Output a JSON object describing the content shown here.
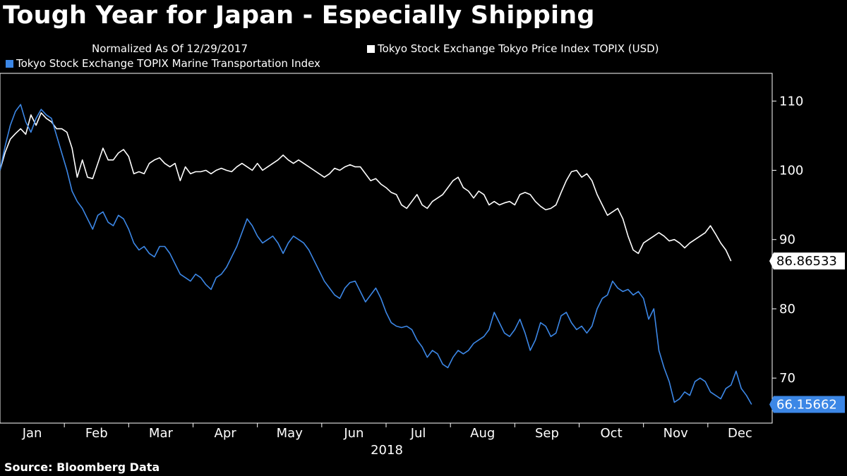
{
  "title": "Tough Year for Japan - Especially Shipping",
  "source": "Source:  Bloomberg Data",
  "colors": {
    "background": "#000000",
    "topix": "#ffffff",
    "marine": "#3c87e6"
  },
  "chart_data": {
    "type": "line",
    "title": "Tough Year for Japan - Especially Shipping",
    "subtitle": "Normalized As Of 12/29/2017",
    "xlabel": "2018",
    "ylabel": "",
    "ylim": [
      63.5,
      114
    ],
    "yticks": [
      70,
      80,
      90,
      100,
      110
    ],
    "ytick_labels": [
      "70",
      "80",
      "90",
      "100",
      "110"
    ],
    "x_domain": [
      0,
      12
    ],
    "x_ticks": [
      {
        "label": "Jan",
        "x": 0.5
      },
      {
        "label": "Feb",
        "x": 1.5
      },
      {
        "label": "Mar",
        "x": 2.5
      },
      {
        "label": "Apr",
        "x": 3.5
      },
      {
        "label": "May",
        "x": 4.5
      },
      {
        "label": "Jun",
        "x": 5.5
      },
      {
        "label": "Jul",
        "x": 6.5
      },
      {
        "label": "Aug",
        "x": 7.5
      },
      {
        "label": "Sep",
        "x": 8.5
      },
      {
        "label": "Oct",
        "x": 9.5
      },
      {
        "label": "Nov",
        "x": 10.5
      },
      {
        "label": "Dec",
        "x": 11.5
      }
    ],
    "legend_position": "top",
    "series": [
      {
        "name": "Tokyo Stock Exchange Tokyo Price Index TOPIX (USD)",
        "color": "#ffffff",
        "last_value_label": "86.86533",
        "points": [
          [
            0.0,
            100.0
          ],
          [
            0.08,
            102.6
          ],
          [
            0.16,
            104.5
          ],
          [
            0.24,
            105.3
          ],
          [
            0.32,
            106.0
          ],
          [
            0.4,
            105.2
          ],
          [
            0.48,
            108.0
          ],
          [
            0.56,
            106.5
          ],
          [
            0.64,
            108.3
          ],
          [
            0.72,
            107.5
          ],
          [
            0.8,
            107.0
          ],
          [
            0.88,
            106.0
          ],
          [
            0.96,
            106.0
          ],
          [
            1.04,
            105.5
          ],
          [
            1.12,
            103.2
          ],
          [
            1.2,
            99.0
          ],
          [
            1.28,
            101.5
          ],
          [
            1.36,
            99.0
          ],
          [
            1.44,
            98.8
          ],
          [
            1.52,
            101.0
          ],
          [
            1.6,
            103.2
          ],
          [
            1.68,
            101.5
          ],
          [
            1.76,
            101.5
          ],
          [
            1.84,
            102.5
          ],
          [
            1.92,
            103.0
          ],
          [
            2.0,
            102.0
          ],
          [
            2.08,
            99.5
          ],
          [
            2.16,
            99.8
          ],
          [
            2.24,
            99.5
          ],
          [
            2.32,
            101.0
          ],
          [
            2.4,
            101.5
          ],
          [
            2.48,
            101.8
          ],
          [
            2.56,
            101.0
          ],
          [
            2.64,
            100.5
          ],
          [
            2.72,
            101.0
          ],
          [
            2.8,
            98.5
          ],
          [
            2.88,
            100.5
          ],
          [
            2.96,
            99.5
          ],
          [
            3.04,
            99.8
          ],
          [
            3.12,
            99.8
          ],
          [
            3.2,
            100.0
          ],
          [
            3.28,
            99.5
          ],
          [
            3.36,
            100.0
          ],
          [
            3.44,
            100.3
          ],
          [
            3.52,
            100.0
          ],
          [
            3.6,
            99.8
          ],
          [
            3.68,
            100.5
          ],
          [
            3.76,
            101.0
          ],
          [
            3.84,
            100.5
          ],
          [
            3.92,
            100.0
          ],
          [
            4.0,
            101.0
          ],
          [
            4.08,
            100.0
          ],
          [
            4.16,
            100.5
          ],
          [
            4.24,
            101.0
          ],
          [
            4.32,
            101.5
          ],
          [
            4.4,
            102.2
          ],
          [
            4.48,
            101.5
          ],
          [
            4.56,
            101.0
          ],
          [
            4.64,
            101.5
          ],
          [
            4.72,
            101.0
          ],
          [
            4.8,
            100.5
          ],
          [
            4.88,
            100.0
          ],
          [
            4.96,
            99.5
          ],
          [
            5.04,
            99.0
          ],
          [
            5.12,
            99.5
          ],
          [
            5.2,
            100.3
          ],
          [
            5.28,
            100.0
          ],
          [
            5.36,
            100.5
          ],
          [
            5.44,
            100.8
          ],
          [
            5.52,
            100.5
          ],
          [
            5.6,
            100.5
          ],
          [
            5.68,
            99.5
          ],
          [
            5.76,
            98.5
          ],
          [
            5.84,
            98.8
          ],
          [
            5.92,
            98.0
          ],
          [
            6.0,
            97.5
          ],
          [
            6.08,
            96.8
          ],
          [
            6.16,
            96.5
          ],
          [
            6.24,
            95.0
          ],
          [
            6.32,
            94.5
          ],
          [
            6.4,
            95.5
          ],
          [
            6.48,
            96.5
          ],
          [
            6.56,
            95.0
          ],
          [
            6.64,
            94.5
          ],
          [
            6.72,
            95.5
          ],
          [
            6.8,
            96.0
          ],
          [
            6.88,
            96.5
          ],
          [
            6.96,
            97.5
          ],
          [
            7.04,
            98.5
          ],
          [
            7.12,
            99.0
          ],
          [
            7.2,
            97.5
          ],
          [
            7.28,
            97.0
          ],
          [
            7.36,
            96.0
          ],
          [
            7.44,
            97.0
          ],
          [
            7.52,
            96.5
          ],
          [
            7.6,
            95.0
          ],
          [
            7.68,
            95.5
          ],
          [
            7.76,
            95.0
          ],
          [
            7.84,
            95.3
          ],
          [
            7.92,
            95.5
          ],
          [
            8.0,
            95.0
          ],
          [
            8.08,
            96.5
          ],
          [
            8.16,
            96.8
          ],
          [
            8.24,
            96.5
          ],
          [
            8.32,
            95.5
          ],
          [
            8.4,
            94.8
          ],
          [
            8.48,
            94.3
          ],
          [
            8.56,
            94.5
          ],
          [
            8.64,
            95.0
          ],
          [
            8.72,
            96.8
          ],
          [
            8.8,
            98.5
          ],
          [
            8.88,
            99.8
          ],
          [
            8.96,
            100.0
          ],
          [
            9.04,
            99.0
          ],
          [
            9.12,
            99.5
          ],
          [
            9.2,
            98.5
          ],
          [
            9.28,
            96.5
          ],
          [
            9.36,
            95.0
          ],
          [
            9.44,
            93.5
          ],
          [
            9.52,
            94.0
          ],
          [
            9.6,
            94.5
          ],
          [
            9.68,
            93.0
          ],
          [
            9.76,
            90.5
          ],
          [
            9.84,
            88.5
          ],
          [
            9.92,
            88.0
          ],
          [
            10.0,
            89.5
          ],
          [
            10.08,
            90.0
          ],
          [
            10.16,
            90.5
          ],
          [
            10.24,
            91.0
          ],
          [
            10.32,
            90.5
          ],
          [
            10.4,
            89.8
          ],
          [
            10.48,
            90.0
          ],
          [
            10.56,
            89.5
          ],
          [
            10.64,
            88.8
          ],
          [
            10.72,
            89.5
          ],
          [
            10.8,
            90.0
          ],
          [
            10.88,
            90.5
          ],
          [
            10.96,
            91.0
          ],
          [
            11.04,
            92.0
          ],
          [
            11.12,
            90.8
          ],
          [
            11.2,
            89.5
          ],
          [
            11.28,
            88.5
          ],
          [
            11.36,
            86.9
          ]
        ]
      },
      {
        "name": "Tokyo Stock Exchange TOPIX Marine Transportation Index",
        "color": "#3c87e6",
        "last_value_label": "66.15662",
        "points": [
          [
            0.0,
            100.0
          ],
          [
            0.08,
            103.5
          ],
          [
            0.16,
            106.5
          ],
          [
            0.24,
            108.5
          ],
          [
            0.32,
            109.5
          ],
          [
            0.4,
            107.0
          ],
          [
            0.48,
            105.5
          ],
          [
            0.56,
            107.5
          ],
          [
            0.64,
            108.8
          ],
          [
            0.72,
            108.0
          ],
          [
            0.8,
            107.5
          ],
          [
            0.88,
            105.0
          ],
          [
            0.96,
            102.5
          ],
          [
            1.04,
            100.0
          ],
          [
            1.12,
            97.0
          ],
          [
            1.2,
            95.5
          ],
          [
            1.28,
            94.5
          ],
          [
            1.36,
            93.0
          ],
          [
            1.44,
            91.5
          ],
          [
            1.52,
            93.5
          ],
          [
            1.6,
            94.0
          ],
          [
            1.68,
            92.5
          ],
          [
            1.76,
            92.0
          ],
          [
            1.84,
            93.5
          ],
          [
            1.92,
            93.0
          ],
          [
            2.0,
            91.5
          ],
          [
            2.08,
            89.5
          ],
          [
            2.16,
            88.5
          ],
          [
            2.24,
            89.0
          ],
          [
            2.32,
            88.0
          ],
          [
            2.4,
            87.5
          ],
          [
            2.48,
            89.0
          ],
          [
            2.56,
            89.0
          ],
          [
            2.64,
            88.0
          ],
          [
            2.72,
            86.5
          ],
          [
            2.8,
            85.0
          ],
          [
            2.88,
            84.5
          ],
          [
            2.96,
            84.0
          ],
          [
            3.04,
            85.0
          ],
          [
            3.12,
            84.5
          ],
          [
            3.2,
            83.5
          ],
          [
            3.28,
            82.8
          ],
          [
            3.36,
            84.5
          ],
          [
            3.44,
            85.0
          ],
          [
            3.52,
            86.0
          ],
          [
            3.6,
            87.5
          ],
          [
            3.68,
            89.0
          ],
          [
            3.76,
            91.0
          ],
          [
            3.84,
            93.0
          ],
          [
            3.92,
            92.0
          ],
          [
            4.0,
            90.5
          ],
          [
            4.08,
            89.5
          ],
          [
            4.16,
            90.0
          ],
          [
            4.24,
            90.5
          ],
          [
            4.32,
            89.5
          ],
          [
            4.4,
            88.0
          ],
          [
            4.48,
            89.5
          ],
          [
            4.56,
            90.5
          ],
          [
            4.64,
            90.0
          ],
          [
            4.72,
            89.5
          ],
          [
            4.8,
            88.5
          ],
          [
            4.88,
            87.0
          ],
          [
            4.96,
            85.5
          ],
          [
            5.04,
            84.0
          ],
          [
            5.12,
            83.0
          ],
          [
            5.2,
            82.0
          ],
          [
            5.28,
            81.5
          ],
          [
            5.36,
            83.0
          ],
          [
            5.44,
            83.8
          ],
          [
            5.52,
            84.0
          ],
          [
            5.6,
            82.5
          ],
          [
            5.68,
            81.0
          ],
          [
            5.76,
            82.0
          ],
          [
            5.84,
            83.0
          ],
          [
            5.92,
            81.5
          ],
          [
            6.0,
            79.5
          ],
          [
            6.08,
            78.0
          ],
          [
            6.16,
            77.5
          ],
          [
            6.24,
            77.3
          ],
          [
            6.32,
            77.5
          ],
          [
            6.4,
            77.0
          ],
          [
            6.48,
            75.5
          ],
          [
            6.56,
            74.5
          ],
          [
            6.64,
            73.0
          ],
          [
            6.72,
            74.0
          ],
          [
            6.8,
            73.5
          ],
          [
            6.88,
            72.0
          ],
          [
            6.96,
            71.5
          ],
          [
            7.04,
            73.0
          ],
          [
            7.12,
            74.0
          ],
          [
            7.2,
            73.5
          ],
          [
            7.28,
            74.0
          ],
          [
            7.36,
            75.0
          ],
          [
            7.44,
            75.5
          ],
          [
            7.52,
            76.0
          ],
          [
            7.6,
            77.0
          ],
          [
            7.68,
            79.5
          ],
          [
            7.76,
            78.0
          ],
          [
            7.84,
            76.5
          ],
          [
            7.92,
            76.0
          ],
          [
            8.0,
            77.0
          ],
          [
            8.08,
            78.5
          ],
          [
            8.16,
            76.5
          ],
          [
            8.24,
            74.0
          ],
          [
            8.32,
            75.5
          ],
          [
            8.4,
            78.0
          ],
          [
            8.48,
            77.5
          ],
          [
            8.56,
            76.0
          ],
          [
            8.64,
            76.5
          ],
          [
            8.72,
            79.0
          ],
          [
            8.8,
            79.5
          ],
          [
            8.88,
            78.0
          ],
          [
            8.96,
            77.0
          ],
          [
            9.04,
            77.5
          ],
          [
            9.12,
            76.5
          ],
          [
            9.2,
            77.5
          ],
          [
            9.28,
            80.0
          ],
          [
            9.36,
            81.5
          ],
          [
            9.44,
            82.0
          ],
          [
            9.52,
            84.0
          ],
          [
            9.6,
            83.0
          ],
          [
            9.68,
            82.5
          ],
          [
            9.76,
            82.8
          ],
          [
            9.84,
            82.0
          ],
          [
            9.92,
            82.5
          ],
          [
            10.0,
            81.5
          ],
          [
            10.08,
            78.5
          ],
          [
            10.16,
            80.0
          ],
          [
            10.24,
            74.0
          ],
          [
            10.32,
            71.5
          ],
          [
            10.4,
            69.5
          ],
          [
            10.48,
            66.5
          ],
          [
            10.56,
            67.0
          ],
          [
            10.64,
            68.0
          ],
          [
            10.72,
            67.5
          ],
          [
            10.8,
            69.5
          ],
          [
            10.88,
            70.0
          ],
          [
            10.96,
            69.5
          ],
          [
            11.04,
            68.0
          ],
          [
            11.12,
            67.5
          ],
          [
            11.2,
            67.0
          ],
          [
            11.28,
            68.5
          ],
          [
            11.36,
            69.0
          ],
          [
            11.44,
            71.0
          ],
          [
            11.52,
            68.5
          ],
          [
            11.6,
            67.5
          ],
          [
            11.68,
            66.2
          ]
        ]
      }
    ]
  }
}
